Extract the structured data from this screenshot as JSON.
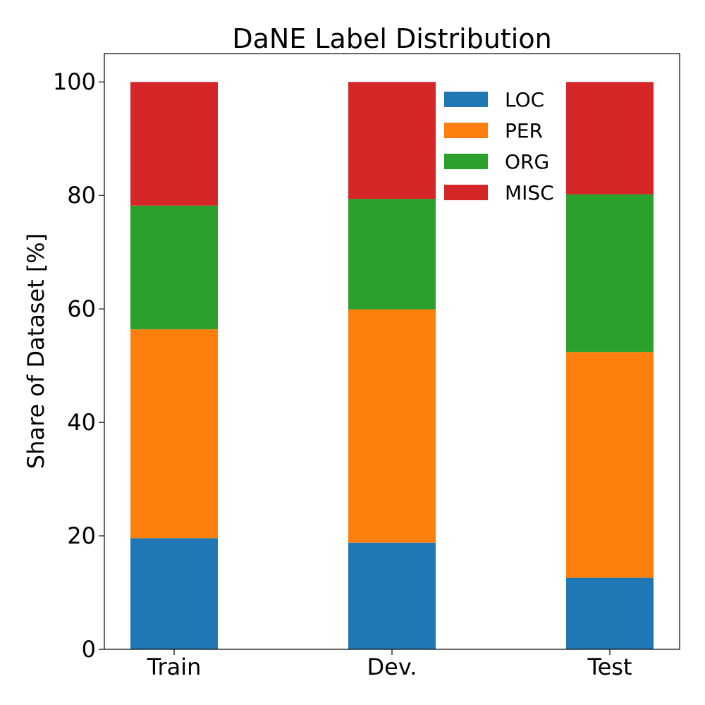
{
  "chart_data": {
    "type": "bar",
    "stacked": true,
    "title": "DaNE Label Distribution",
    "xlabel": "",
    "ylabel": "Share of Dataset [%]",
    "ylim": [
      0,
      105
    ],
    "yticks": [
      0,
      20,
      40,
      60,
      80,
      100
    ],
    "categories": [
      "Train",
      "Dev.",
      "Test"
    ],
    "series": [
      {
        "name": "LOC",
        "color": "#1f77b4",
        "values": [
          19.6,
          18.8,
          12.6
        ]
      },
      {
        "name": "PER",
        "color": "#ff7f0e",
        "values": [
          36.8,
          41.1,
          39.8
        ]
      },
      {
        "name": "ORG",
        "color": "#2ca02c",
        "values": [
          21.8,
          19.5,
          27.8
        ]
      },
      {
        "name": "MISC",
        "color": "#d62728",
        "values": [
          21.8,
          20.6,
          19.8
        ]
      }
    ],
    "legend_position": "top-right",
    "grid": false
  }
}
